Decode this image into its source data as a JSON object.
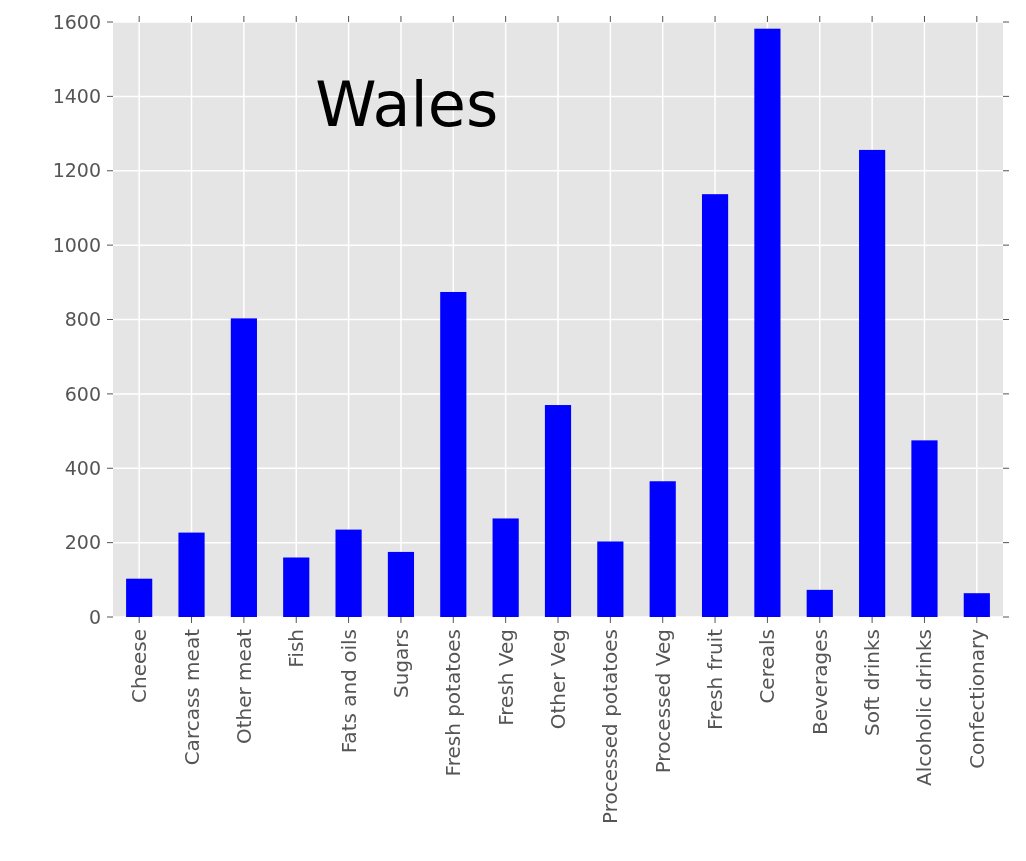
{
  "chart_data": {
    "type": "bar",
    "title": "Wales",
    "categories": [
      "Cheese",
      "Carcass meat",
      "Other meat",
      "Fish",
      "Fats and oils",
      "Sugars",
      "Fresh potatoes",
      "Fresh Veg",
      "Other Veg",
      "Processed potatoes",
      "Processed Veg",
      "Fresh fruit",
      "Cereals",
      "Beverages",
      "Soft drinks",
      "Alcoholic drinks",
      "Confectionary"
    ],
    "values": [
      103,
      227,
      803,
      160,
      235,
      175,
      874,
      265,
      570,
      203,
      365,
      1137,
      1582,
      73,
      1256,
      475,
      64
    ],
    "color": "#0000ff",
    "ylim": [
      0,
      1600
    ],
    "yticks": [
      0,
      200,
      400,
      600,
      800,
      1000,
      1200,
      1400,
      1600
    ],
    "grid": true
  }
}
